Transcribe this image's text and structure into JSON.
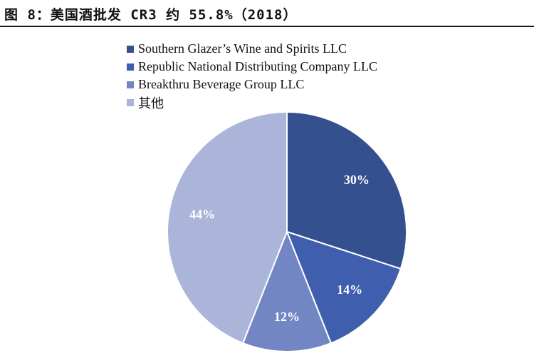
{
  "title": "图 8：美国酒批发 CR3 约 55.8%（2018）",
  "chart_data": {
    "type": "pie",
    "title": "美国酒批发 CR3 约 55.8%（2018）",
    "start_angle_deg": 0,
    "direction": "clockwise",
    "legend_position": "top-left",
    "slices": [
      {
        "label": "Southern Glazer’s Wine and Spirits LLC",
        "value": 30,
        "display": "30%",
        "color": "#34508f"
      },
      {
        "label": "Republic National Distributing Company LLC",
        "value": 14,
        "display": "14%",
        "color": "#3f5fae"
      },
      {
        "label": "Breakthru Beverage Group LLC",
        "value": 12,
        "display": "12%",
        "color": "#7286c4"
      },
      {
        "label": "其他",
        "value": 44,
        "display": "44%",
        "color": "#aab5d9"
      }
    ]
  }
}
